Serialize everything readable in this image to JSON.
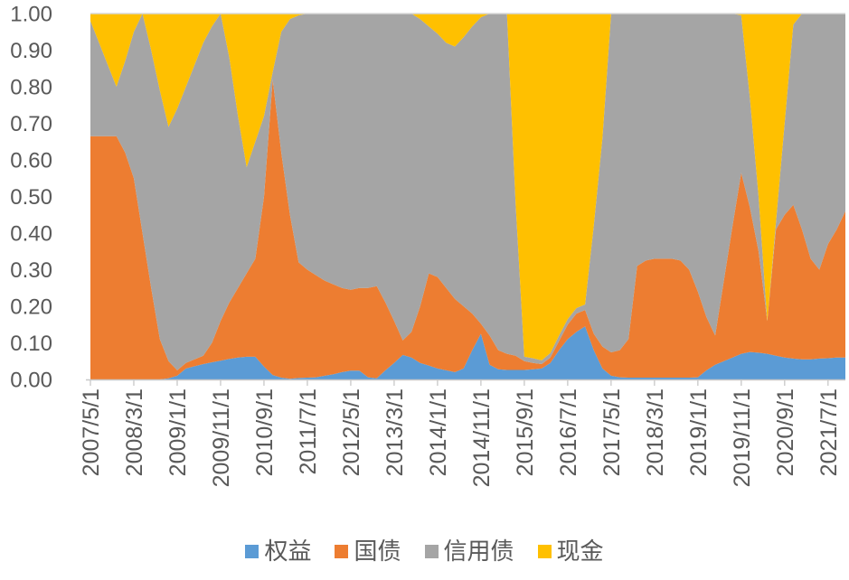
{
  "colors": {
    "background": "#FFFFFF",
    "axis_text": "#595959",
    "top_gridline": "#D9D9D9",
    "axis_line": "#C8C8C8",
    "tick_mark": "#C8C8C8"
  },
  "chart_data": {
    "type": "area",
    "stacked": true,
    "stack_total": 1.0,
    "title": "",
    "legend_position": "bottom",
    "grid": "top-border-only",
    "y_axis": {
      "min": 0,
      "max": 1,
      "step": 0.1,
      "tick_labels": [
        "0.00",
        "0.10",
        "0.20",
        "0.30",
        "0.40",
        "0.50",
        "0.60",
        "0.70",
        "0.80",
        "0.90",
        "1.00"
      ]
    },
    "x_axis": {
      "visible_tick_labels": [
        "2007/5/1",
        "2008/3/1",
        "2009/1/1",
        "2009/11/1",
        "2010/9/1",
        "2011/7/1",
        "2012/5/1",
        "2013/3/1",
        "2014/1/1",
        "2014/11/1",
        "2015/9/1",
        "2016/7/1",
        "2017/5/1",
        "2018/3/1",
        "2019/1/1",
        "2019/11/1",
        "2020/9/1",
        "2021/7/1"
      ],
      "label_every_n_points": 5,
      "rotation_degrees": -90
    },
    "x": [
      "2007/5/1",
      "2007/7/1",
      "2007/9/1",
      "2007/11/1",
      "2008/1/1",
      "2008/3/1",
      "2008/5/1",
      "2008/7/1",
      "2008/9/1",
      "2008/11/1",
      "2009/1/1",
      "2009/3/1",
      "2009/5/1",
      "2009/7/1",
      "2009/9/1",
      "2009/11/1",
      "2010/1/1",
      "2010/3/1",
      "2010/5/1",
      "2010/7/1",
      "2010/9/1",
      "2010/11/1",
      "2011/1/1",
      "2011/3/1",
      "2011/5/1",
      "2011/7/1",
      "2011/9/1",
      "2011/11/1",
      "2012/1/1",
      "2012/3/1",
      "2012/5/1",
      "2012/7/1",
      "2012/9/1",
      "2012/11/1",
      "2013/1/1",
      "2013/3/1",
      "2013/5/1",
      "2013/7/1",
      "2013/9/1",
      "2013/11/1",
      "2014/1/1",
      "2014/3/1",
      "2014/5/1",
      "2014/7/1",
      "2014/9/1",
      "2014/11/1",
      "2015/1/1",
      "2015/3/1",
      "2015/5/1",
      "2015/7/1",
      "2015/9/1",
      "2015/11/1",
      "2016/1/1",
      "2016/3/1",
      "2016/5/1",
      "2016/7/1",
      "2016/9/1",
      "2016/11/1",
      "2017/1/1",
      "2017/3/1",
      "2017/5/1",
      "2017/7/1",
      "2017/9/1",
      "2017/11/1",
      "2018/1/1",
      "2018/3/1",
      "2018/5/1",
      "2018/7/1",
      "2018/9/1",
      "2018/11/1",
      "2019/1/1",
      "2019/3/1",
      "2019/5/1",
      "2019/7/1",
      "2019/9/1",
      "2019/11/1",
      "2020/1/1",
      "2020/3/1",
      "2020/5/1",
      "2020/7/1",
      "2020/9/1",
      "2020/11/1",
      "2021/1/1",
      "2021/3/1",
      "2021/5/1",
      "2021/7/1",
      "2021/9/1",
      "2021/11/1"
    ],
    "series": [
      {
        "key": "equity",
        "name": "权益",
        "color": "#5B9BD5",
        "values": [
          0,
          0,
          0,
          0,
          0,
          0,
          0,
          0,
          0,
          0.003,
          0.01,
          0.03,
          0.036,
          0.042,
          0.047,
          0.051,
          0.056,
          0.06,
          0.062,
          0.062,
          0.035,
          0.012,
          0.005,
          0.002,
          0.004,
          0.005,
          0.006,
          0.01,
          0.014,
          0.02,
          0.024,
          0.024,
          0.006,
          0.003,
          0.025,
          0.045,
          0.067,
          0.06,
          0.045,
          0.038,
          0.03,
          0.025,
          0.02,
          0.03,
          0.08,
          0.125,
          0.04,
          0.028,
          0.026,
          0.026,
          0.026,
          0.028,
          0.03,
          0.045,
          0.08,
          0.11,
          0.13,
          0.145,
          0.08,
          0.03,
          0.01,
          0.006,
          0.005,
          0.005,
          0.005,
          0.005,
          0.005,
          0.005,
          0.005,
          0.005,
          0.006,
          0.025,
          0.04,
          0.05,
          0.06,
          0.07,
          0.075,
          0.073,
          0.07,
          0.065,
          0.06,
          0.057,
          0.055,
          0.055,
          0.057,
          0.058,
          0.06,
          0.06
        ]
      },
      {
        "key": "treasury",
        "name": "国债",
        "color": "#ED7D31",
        "values": [
          0.665,
          0.665,
          0.665,
          0.665,
          0.62,
          0.55,
          0.4,
          0.25,
          0.11,
          0.047,
          0.015,
          0.015,
          0.019,
          0.023,
          0.053,
          0.109,
          0.154,
          0.19,
          0.228,
          0.268,
          0.465,
          0.808,
          0.615,
          0.448,
          0.316,
          0.295,
          0.279,
          0.26,
          0.246,
          0.23,
          0.221,
          0.226,
          0.244,
          0.252,
          0.185,
          0.115,
          0.04,
          0.07,
          0.155,
          0.252,
          0.25,
          0.225,
          0.2,
          0.17,
          0.1,
          0.027,
          0.08,
          0.052,
          0.044,
          0.039,
          0.024,
          0.017,
          0.012,
          0.015,
          0.025,
          0.04,
          0.05,
          0.045,
          0.045,
          0.06,
          0.064,
          0.074,
          0.105,
          0.305,
          0.32,
          0.325,
          0.325,
          0.325,
          0.32,
          0.295,
          0.234,
          0.145,
          0.08,
          0.22,
          0.36,
          0.495,
          0.395,
          0.277,
          0.09,
          0.345,
          0.39,
          0.42,
          0.355,
          0.275,
          0.243,
          0.312,
          0.35,
          0.4
        ]
      },
      {
        "key": "credit",
        "name": "信用债",
        "color": "#A5A5A5",
        "values": [
          0.315,
          0.255,
          0.195,
          0.135,
          0.25,
          0.4,
          0.6,
          0.65,
          0.68,
          0.64,
          0.715,
          0.755,
          0.805,
          0.855,
          0.865,
          0.84,
          0.67,
          0.47,
          0.29,
          0.32,
          0.22,
          0.02,
          0.33,
          0.535,
          0.675,
          0.7,
          0.715,
          0.73,
          0.74,
          0.75,
          0.755,
          0.75,
          0.75,
          0.745,
          0.79,
          0.84,
          0.893,
          0.87,
          0.785,
          0.675,
          0.665,
          0.67,
          0.69,
          0.735,
          0.785,
          0.838,
          0.88,
          0.92,
          0.93,
          0.415,
          0.012,
          0.013,
          0.01,
          0.012,
          0.015,
          0.015,
          0.015,
          0.015,
          0.295,
          0.57,
          0.926,
          0.92,
          0.89,
          0.69,
          0.675,
          0.67,
          0.67,
          0.67,
          0.675,
          0.7,
          0.76,
          0.83,
          0.88,
          0.73,
          0.58,
          0.43,
          0.3,
          0.15,
          0,
          0.02,
          0.25,
          0.493,
          0.59,
          0.67,
          0.7,
          0.63,
          0.59,
          0.54
        ]
      },
      {
        "key": "cash",
        "name": "现金",
        "color": "#FFC000",
        "values": [
          0.02,
          0.08,
          0.14,
          0.2,
          0.13,
          0.05,
          0,
          0.1,
          0.21,
          0.31,
          0.26,
          0.2,
          0.14,
          0.08,
          0.035,
          0,
          0.12,
          0.28,
          0.42,
          0.35,
          0.28,
          0.16,
          0.05,
          0.015,
          0.005,
          0,
          0,
          0,
          0,
          0,
          0,
          0,
          0,
          0,
          0,
          0,
          0,
          0,
          0.015,
          0.035,
          0.055,
          0.08,
          0.09,
          0.065,
          0.035,
          0.01,
          0,
          0,
          0,
          0.52,
          0.938,
          0.942,
          0.948,
          0.928,
          0.88,
          0.835,
          0.805,
          0.795,
          0.58,
          0.34,
          0,
          0,
          0,
          0,
          0,
          0,
          0,
          0,
          0,
          0,
          0,
          0,
          0,
          0,
          0,
          0.005,
          0.23,
          0.5,
          0.84,
          0.57,
          0.3,
          0.03,
          0,
          0,
          0,
          0,
          0,
          0
        ]
      }
    ]
  }
}
